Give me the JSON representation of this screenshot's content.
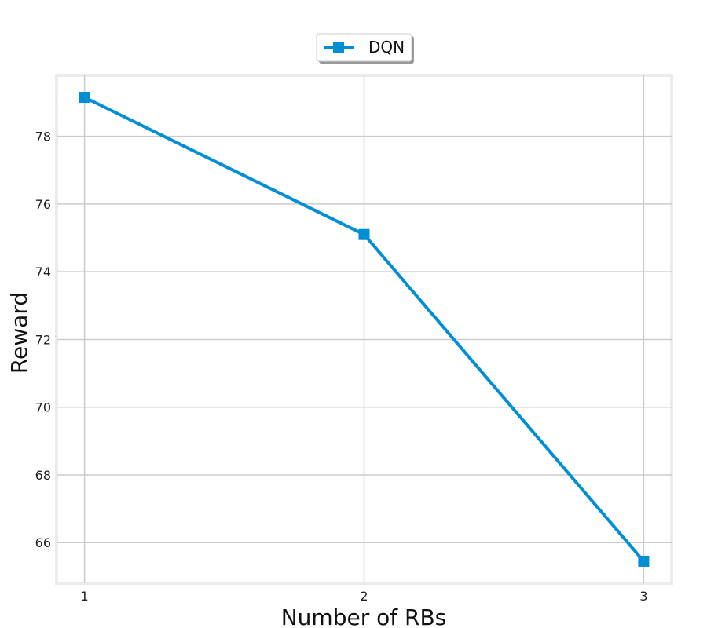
{
  "chart_data": {
    "type": "line",
    "x": [
      1,
      2,
      3
    ],
    "series": [
      {
        "name": "DQN",
        "values": [
          79.15,
          75.1,
          65.45
        ],
        "color": "#008fd5",
        "marker": "square"
      }
    ],
    "xlabel": "Number of RBs",
    "ylabel": "Reward",
    "xticks": [
      1,
      2,
      3
    ],
    "yticks": [
      66,
      68,
      70,
      72,
      74,
      76,
      78
    ],
    "xlim": [
      0.9,
      3.1
    ],
    "ylim": [
      64.8,
      79.8
    ],
    "grid": true,
    "legend_position": "top-center"
  }
}
